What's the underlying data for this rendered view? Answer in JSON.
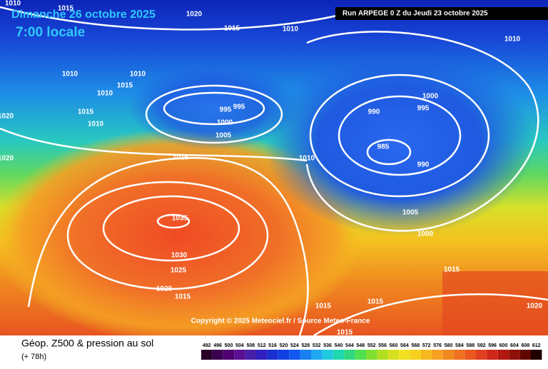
{
  "header": {
    "date": "Dimanche 26 octobre 2025",
    "time": "7:00 locale",
    "run": "Run ARPEGE 0 Z du Jeudi 23 octobre 2025"
  },
  "copyright": "Copyright © 2025 Meteociel.fr / Source Meteo-France",
  "footer": {
    "title": "Géop. Z500 & pression au sol",
    "lead": "(+ 78h)"
  },
  "isobar_labels": [
    1010,
    1015,
    1020,
    1015,
    1010,
    1010,
    1010,
    1010,
    1015,
    1010,
    1015,
    1010,
    1020,
    995,
    995,
    1000,
    1005,
    1020,
    1000,
    995,
    990,
    985,
    990,
    1010,
    1015,
    1035,
    1030,
    1025,
    1020,
    1015,
    1005,
    1000,
    1015,
    1020,
    1015,
    1015,
    1015
  ],
  "colorbar": {
    "ticks": [
      492,
      496,
      500,
      504,
      508,
      512,
      516,
      520,
      524,
      528,
      532,
      536,
      540,
      544,
      548,
      552,
      556,
      560,
      564,
      568,
      572,
      576,
      580,
      584,
      588,
      592,
      596,
      600,
      604,
      608,
      612
    ]
  }
}
